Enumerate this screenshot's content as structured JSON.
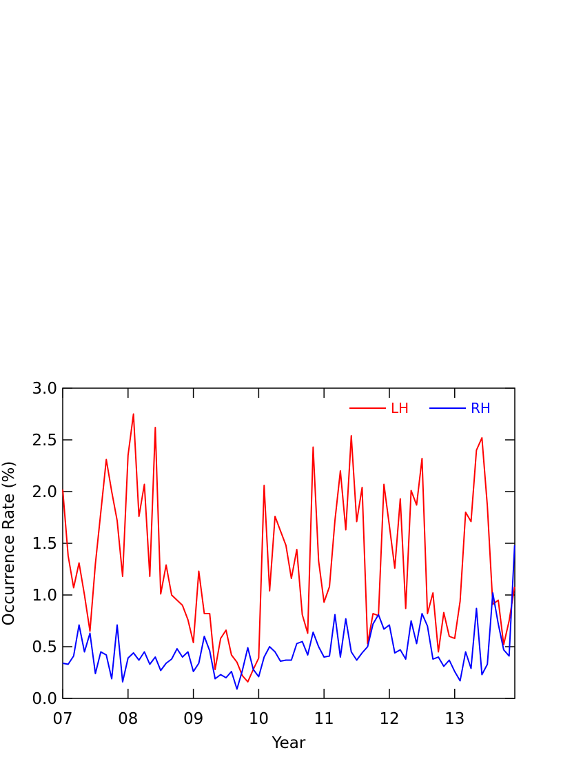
{
  "chart_data": {
    "type": "line",
    "xlabel": "Year",
    "ylabel": "Occurrence Rate (%)",
    "x": [
      7,
      7.083,
      7.167,
      7.25,
      7.333,
      7.417,
      7.5,
      7.583,
      7.667,
      7.75,
      7.833,
      7.917,
      8,
      8.083,
      8.167,
      8.25,
      8.333,
      8.417,
      8.5,
      8.583,
      8.667,
      8.75,
      8.833,
      8.917,
      9,
      9.083,
      9.167,
      9.25,
      9.333,
      9.417,
      9.5,
      9.583,
      9.667,
      9.75,
      9.833,
      9.917,
      10,
      10.083,
      10.167,
      10.25,
      10.333,
      10.417,
      10.5,
      10.583,
      10.667,
      10.75,
      10.833,
      10.917,
      11,
      11.083,
      11.167,
      11.25,
      11.333,
      11.417,
      11.5,
      11.583,
      11.667,
      11.75,
      11.833,
      11.917,
      12,
      12.083,
      12.167,
      12.25,
      12.333,
      12.417,
      12.5,
      12.583,
      12.667,
      12.75,
      12.833,
      12.917,
      13,
      13.083,
      13.167,
      13.25,
      13.333,
      13.417,
      13.5,
      13.583,
      13.667,
      13.75,
      13.833,
      13.917
    ],
    "series": [
      {
        "name": "LH",
        "color": "#ff0000",
        "values": [
          2.02,
          1.38,
          1.07,
          1.31,
          1.0,
          0.65,
          1.3,
          1.8,
          2.31,
          2.0,
          1.72,
          1.18,
          2.35,
          2.75,
          1.76,
          2.07,
          1.18,
          2.62,
          1.01,
          1.29,
          1.0,
          0.95,
          0.9,
          0.76,
          0.54,
          1.23,
          0.82,
          0.82,
          0.28,
          0.58,
          0.66,
          0.42,
          0.35,
          0.22,
          0.16,
          0.28,
          0.39,
          2.06,
          1.04,
          1.76,
          1.62,
          1.48,
          1.16,
          1.44,
          0.81,
          0.63,
          2.43,
          1.33,
          0.93,
          1.08,
          1.72,
          2.2,
          1.63,
          2.54,
          1.71,
          2.04,
          0.53,
          0.82,
          0.8,
          2.07,
          1.67,
          1.26,
          1.93,
          0.87,
          2.01,
          1.87,
          2.32,
          0.82,
          1.02,
          0.45,
          0.83,
          0.6,
          0.58,
          0.94,
          1.8,
          1.71,
          2.4,
          2.52,
          1.86,
          0.91,
          0.95,
          0.52,
          0.75,
          1.08
        ]
      },
      {
        "name": "RH",
        "color": "#0000ff",
        "values": [
          0.34,
          0.33,
          0.41,
          0.71,
          0.45,
          0.63,
          0.24,
          0.45,
          0.42,
          0.19,
          0.71,
          0.16,
          0.39,
          0.44,
          0.37,
          0.45,
          0.33,
          0.4,
          0.27,
          0.34,
          0.38,
          0.48,
          0.4,
          0.45,
          0.26,
          0.34,
          0.6,
          0.46,
          0.19,
          0.23,
          0.2,
          0.26,
          0.09,
          0.27,
          0.49,
          0.28,
          0.21,
          0.4,
          0.5,
          0.45,
          0.36,
          0.37,
          0.37,
          0.53,
          0.55,
          0.42,
          0.64,
          0.5,
          0.4,
          0.41,
          0.81,
          0.4,
          0.77,
          0.45,
          0.37,
          0.44,
          0.5,
          0.72,
          0.81,
          0.67,
          0.71,
          0.44,
          0.47,
          0.38,
          0.75,
          0.53,
          0.82,
          0.7,
          0.38,
          0.4,
          0.31,
          0.37,
          0.26,
          0.17,
          0.45,
          0.29,
          0.87,
          0.23,
          0.33,
          1.02,
          0.72,
          0.47,
          0.41,
          1.48
        ]
      }
    ],
    "xlim": [
      7,
      13.92
    ],
    "xticks": [
      {
        "value": 7,
        "label": "07"
      },
      {
        "value": 8,
        "label": "08"
      },
      {
        "value": 9,
        "label": "09"
      },
      {
        "value": 10,
        "label": "10"
      },
      {
        "value": 11,
        "label": "11"
      },
      {
        "value": 12,
        "label": "12"
      },
      {
        "value": 13,
        "label": "13"
      }
    ],
    "ylim": [
      0,
      3
    ],
    "yticks": [
      {
        "value": 0,
        "label": "0.0"
      },
      0.5,
      {
        "value": 1,
        "label": "1.0"
      },
      1.5,
      {
        "value": 2,
        "label": "2.0"
      },
      2.5,
      {
        "value": 3,
        "label": "3.0"
      }
    ],
    "legend": "upper right"
  }
}
